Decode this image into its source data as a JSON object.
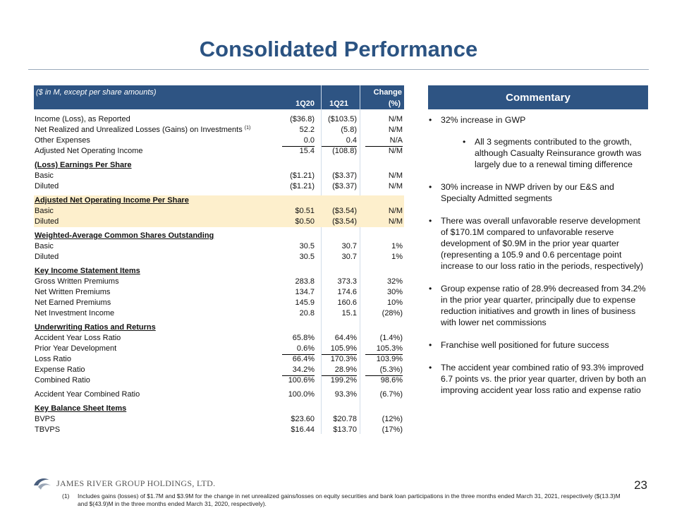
{
  "title": "Consolidated Performance",
  "table": {
    "caption": "($ in M, except per share amounts)",
    "col1": "1Q20",
    "col2": "1Q21",
    "col3a": "Change",
    "col3b": "(%)",
    "rows": [
      {
        "type": "row",
        "label": "Income (Loss), as Reported",
        "q20": "($36.8)",
        "q21": "($103.5)",
        "chg": "N/M"
      },
      {
        "type": "row",
        "label": "Net Realized and Unrealized Losses (Gains) on Investments",
        "sup": "(1)",
        "q20": "52.2",
        "q21": "(5.8)",
        "chg": "N/M"
      },
      {
        "type": "row",
        "label": "Other Expenses",
        "q20": "0.0",
        "q21": "0.4",
        "chg": "N/A",
        "ul": true
      },
      {
        "type": "row",
        "label": "Adjusted Net Operating Income",
        "q20": "15.4",
        "q21": "(108.8)",
        "chg": "N/M"
      },
      {
        "type": "sec",
        "label": "(Loss) Earnings Per Share"
      },
      {
        "type": "row",
        "label": "Basic",
        "q20": "($1.21)",
        "q21": "($3.37)",
        "chg": "N/M"
      },
      {
        "type": "row",
        "label": "Diluted",
        "q20": "($1.21)",
        "q21": "($3.37)",
        "chg": "N/M"
      },
      {
        "type": "sec",
        "label": "Adjusted Net Operating Income Per Share",
        "hl": true
      },
      {
        "type": "row",
        "label": "Basic",
        "q20": "$0.51",
        "q21": "($3.54)",
        "chg": "N/M",
        "hl": true
      },
      {
        "type": "row",
        "label": "Diluted",
        "q20": "$0.50",
        "q21": "($3.54)",
        "chg": "N/M",
        "hl": true
      },
      {
        "type": "sec",
        "label": "Weighted-Average Common Shares Outstanding"
      },
      {
        "type": "row",
        "label": "Basic",
        "q20": "30.5",
        "q21": "30.7",
        "chg": "1%"
      },
      {
        "type": "row",
        "label": "Diluted",
        "q20": "30.5",
        "q21": "30.7",
        "chg": "1%"
      },
      {
        "type": "sec",
        "label": "Key Income Statement Items"
      },
      {
        "type": "row",
        "label": "Gross Written Premiums",
        "q20": "283.8",
        "q21": "373.3",
        "chg": "32%"
      },
      {
        "type": "row",
        "label": "Net Written Premiums",
        "q20": "134.7",
        "q21": "174.6",
        "chg": "30%"
      },
      {
        "type": "row",
        "label": "Net Earned Premiums",
        "q20": "145.9",
        "q21": "160.6",
        "chg": "10%"
      },
      {
        "type": "row",
        "label": "Net Investment Income",
        "q20": "20.8",
        "q21": "15.1",
        "chg": "(28%)"
      },
      {
        "type": "sec",
        "label": "Underwriting Ratios and Returns"
      },
      {
        "type": "row",
        "label": "Accident Year Loss Ratio",
        "q20": "65.8%",
        "q21": "64.4%",
        "chg": "(1.4%)"
      },
      {
        "type": "row",
        "label": "Prior Year Development",
        "q20": "0.6%",
        "q21": "105.9%",
        "chg": "105.3%",
        "ul": true
      },
      {
        "type": "row",
        "label": "Loss Ratio",
        "q20": "66.4%",
        "q21": "170.3%",
        "chg": "103.9%"
      },
      {
        "type": "row",
        "label": "Expense Ratio",
        "q20": "34.2%",
        "q21": "28.9%",
        "chg": "(5.3%)",
        "ul": true
      },
      {
        "type": "row",
        "label": "Combined Ratio",
        "q20": "100.6%",
        "q21": "199.2%",
        "chg": "98.6%"
      },
      {
        "type": "row",
        "label": "Accident Year Combined Ratio",
        "q20": "100.0%",
        "q21": "93.3%",
        "chg": "(6.7%)",
        "gap": true
      },
      {
        "type": "sec",
        "label": "Key Balance Sheet Items"
      },
      {
        "type": "row",
        "label": "BVPS",
        "q20": "$23.60",
        "q21": "$20.78",
        "chg": "(12%)"
      },
      {
        "type": "row",
        "label": "TBVPS",
        "q20": "$16.44",
        "q21": "$13.70",
        "chg": "(17%)"
      }
    ]
  },
  "commentary": {
    "title": "Commentary",
    "bullets": [
      {
        "text": "32% increase in GWP"
      },
      {
        "text": "All 3 segments contributed to the growth, although Casualty Reinsurance growth was largely due to a renewal timing difference",
        "sub": true
      },
      {
        "text": "30% increase in NWP driven by our E&S and Specialty Admitted segments"
      },
      {
        "text": "There was overall unfavorable reserve development of $170.1M compared to unfavorable reserve development of $0.9M in the prior year quarter (representing a 105.9 and 0.6 percentage point increase to our loss ratio in the periods, respectively)"
      },
      {
        "text": "Group expense ratio of 28.9% decreased from 34.2% in the prior year quarter, principally due to expense reduction initiatives and growth in lines of business with lower net commissions"
      },
      {
        "text": "Franchise well positioned for future success"
      },
      {
        "text": "The accident year combined ratio of 93.3% improved 6.7 points vs. the prior year quarter, driven by both an improving accident year loss ratio and expense ratio"
      }
    ]
  },
  "footer": {
    "company": "JAMES RIVER GROUP HOLDINGS, LTD.",
    "page": "23",
    "note_num": "(1)",
    "note": "Includes gains (losses) of $1.7M and $3.9M for the change in net unrealized gains/losses on equity securities and bank loan participations in the three months ended March 31, 2021, respectively ($(13.3)M and $(43.9)M in the three months ended March 31, 2020, respectively)."
  },
  "colors": {
    "header": "#2E5483",
    "title": "#2B5382",
    "highlight": "#FDEFCC"
  }
}
